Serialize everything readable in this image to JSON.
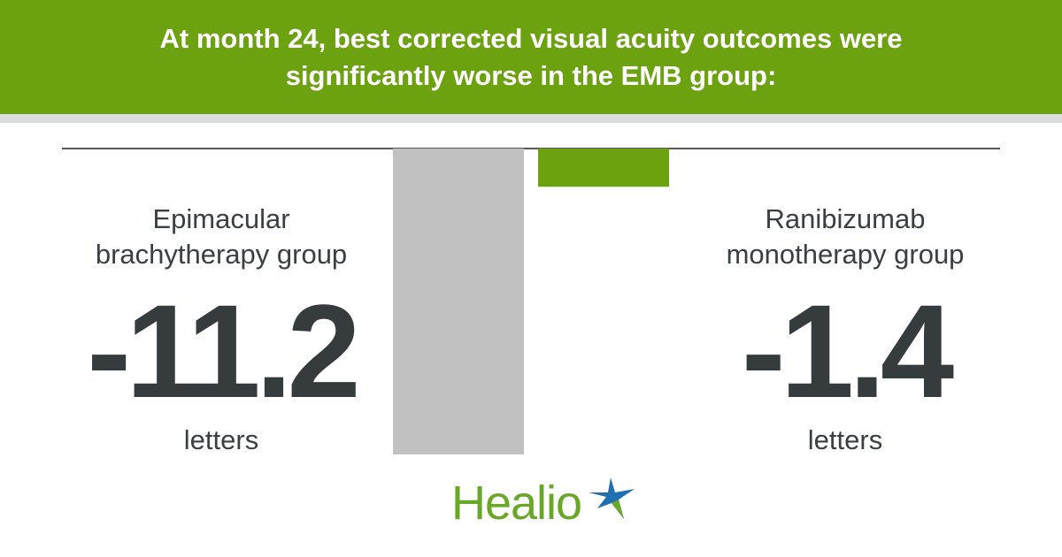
{
  "chart_data": {
    "type": "bar",
    "title": "At month 24, best corrected visual acuity outcomes were significantly worse in the EMB group:",
    "categories": [
      "Epimacular brachytherapy group",
      "Ranibizumab monotherapy group"
    ],
    "values": [
      -11.2,
      -1.4
    ],
    "value_labels": [
      "-11.2",
      "-1.4"
    ],
    "unit": "letters",
    "colors": [
      "#c1c1c1",
      "#6ca110"
    ],
    "ylim": [
      -11.2,
      0
    ],
    "grid": false
  },
  "left": {
    "line1": "Epimacular",
    "line2": "brachytherapy group"
  },
  "right": {
    "line1": "Ranibizumab",
    "line2": "monotherapy group"
  },
  "brand": {
    "name": "Healio",
    "green": "#6aa728",
    "blue": "#1f6fb2"
  }
}
